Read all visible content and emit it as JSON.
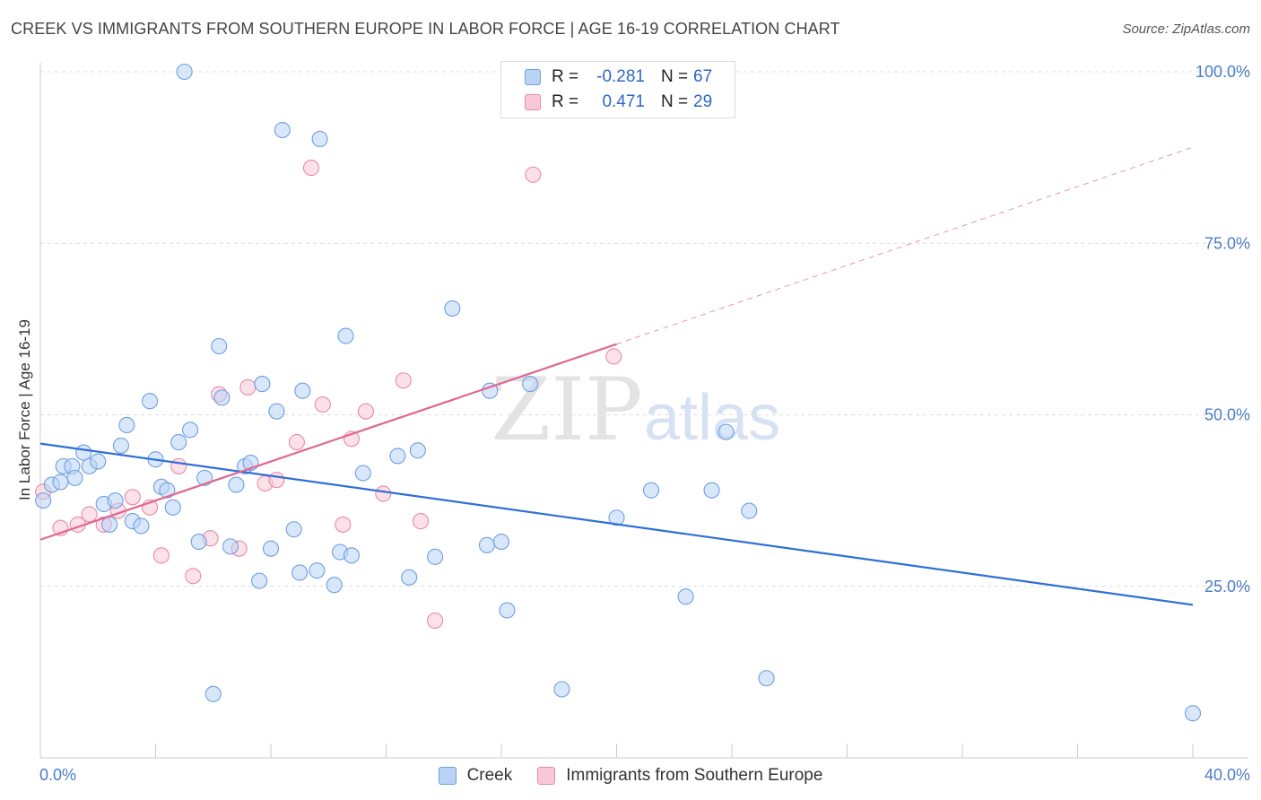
{
  "title": "CREEK VS IMMIGRANTS FROM SOUTHERN EUROPE IN LABOR FORCE | AGE 16-19 CORRELATION CHART",
  "source": "Source: ZipAtlas.com",
  "watermark": {
    "zip": "ZIP",
    "atlas": "atlas"
  },
  "legend_top": {
    "rows": [
      {
        "r_label": "R =",
        "r_value": "-0.281",
        "n_label": "N =",
        "n_value": "67"
      },
      {
        "r_label": "R =",
        "r_value": "0.471",
        "n_label": "N =",
        "n_value": "29"
      }
    ]
  },
  "legend_bottom": {
    "items": [
      {
        "label": "Creek"
      },
      {
        "label": "Immigrants from Southern Europe"
      }
    ]
  },
  "colors": {
    "creek_fill": "#b9d3f5",
    "creek_stroke": "#6d9fe0",
    "creek_line": "#2f6fd6",
    "imm_fill": "#f9c8d6",
    "imm_stroke": "#e88aa6",
    "imm_line": "#e0678f",
    "tick_text": "#4a7cc7",
    "grid": "#dddddd"
  },
  "chart_data": {
    "type": "scatter",
    "title": "CREEK VS IMMIGRANTS FROM SOUTHERN EUROPE IN LABOR FORCE | AGE 16-19 CORRELATION CHART",
    "xlabel": "",
    "ylabel": "In Labor Force | Age 16-19",
    "xlim": [
      0,
      40
    ],
    "ylim": [
      0,
      102
    ],
    "x_tick_labels": [
      "0.0%",
      "40.0%"
    ],
    "y_ticks": [
      25,
      50,
      75,
      100
    ],
    "y_tick_labels": [
      "25.0%",
      "50.0%",
      "75.0%",
      "100.0%"
    ],
    "grid": true,
    "legend_position": "top-center",
    "series": [
      {
        "name": "Creek",
        "r": -0.281,
        "n": 67,
        "trend": {
          "x0": 0,
          "y0": 45.8,
          "x1": 40,
          "y1": 22.3
        },
        "points": [
          [
            0.1,
            37.5
          ],
          [
            0.4,
            39.8
          ],
          [
            0.7,
            40.2
          ],
          [
            0.8,
            42.5
          ],
          [
            1.1,
            42.5
          ],
          [
            1.2,
            40.8
          ],
          [
            1.5,
            44.5
          ],
          [
            1.7,
            42.5
          ],
          [
            2.0,
            43.2
          ],
          [
            2.2,
            37.0
          ],
          [
            2.4,
            34.0
          ],
          [
            2.6,
            37.5
          ],
          [
            2.8,
            45.5
          ],
          [
            3.0,
            48.5
          ],
          [
            3.2,
            34.5
          ],
          [
            3.5,
            33.8
          ],
          [
            3.8,
            52.0
          ],
          [
            4.0,
            43.5
          ],
          [
            4.2,
            39.5
          ],
          [
            4.4,
            39.0
          ],
          [
            4.6,
            36.5
          ],
          [
            4.8,
            46.0
          ],
          [
            5.0,
            100.0
          ],
          [
            5.2,
            47.8
          ],
          [
            5.5,
            31.5
          ],
          [
            5.7,
            40.8
          ],
          [
            6.0,
            9.3
          ],
          [
            6.2,
            60.0
          ],
          [
            6.3,
            52.5
          ],
          [
            6.6,
            30.8
          ],
          [
            6.8,
            39.8
          ],
          [
            7.1,
            42.5
          ],
          [
            7.3,
            43.0
          ],
          [
            7.6,
            25.8
          ],
          [
            7.7,
            54.5
          ],
          [
            8.0,
            30.5
          ],
          [
            8.2,
            50.5
          ],
          [
            8.4,
            91.5
          ],
          [
            8.8,
            33.3
          ],
          [
            9.0,
            27.0
          ],
          [
            9.1,
            53.5
          ],
          [
            9.6,
            27.3
          ],
          [
            9.7,
            90.2
          ],
          [
            10.2,
            25.2
          ],
          [
            10.4,
            30.0
          ],
          [
            10.6,
            61.5
          ],
          [
            10.8,
            29.5
          ],
          [
            11.2,
            41.5
          ],
          [
            12.4,
            44.0
          ],
          [
            12.8,
            26.3
          ],
          [
            13.1,
            44.8
          ],
          [
            13.7,
            29.3
          ],
          [
            14.3,
            65.5
          ],
          [
            15.5,
            31.0
          ],
          [
            15.6,
            53.5
          ],
          [
            16.0,
            31.5
          ],
          [
            16.2,
            21.5
          ],
          [
            17.0,
            54.5
          ],
          [
            18.1,
            10.0
          ],
          [
            20.0,
            35.0
          ],
          [
            21.2,
            39.0
          ],
          [
            22.4,
            23.5
          ],
          [
            23.3,
            39.0
          ],
          [
            23.8,
            47.5
          ],
          [
            24.6,
            36.0
          ],
          [
            25.2,
            11.6
          ],
          [
            40.0,
            6.5
          ]
        ]
      },
      {
        "name": "Immigrants from Southern Europe",
        "r": 0.471,
        "n": 29,
        "trend": {
          "x0": 0,
          "y0": 31.8,
          "x1": 20.0,
          "y1": 60.3,
          "dash_x1": 40,
          "dash_y1": 89.0
        },
        "points": [
          [
            0.1,
            38.8
          ],
          [
            0.7,
            33.5
          ],
          [
            1.3,
            34.0
          ],
          [
            1.7,
            35.5
          ],
          [
            2.2,
            34.0
          ],
          [
            2.7,
            36.0
          ],
          [
            3.2,
            38.0
          ],
          [
            3.8,
            36.5
          ],
          [
            4.2,
            29.5
          ],
          [
            4.8,
            42.5
          ],
          [
            5.3,
            26.5
          ],
          [
            5.9,
            32.0
          ],
          [
            6.2,
            53.0
          ],
          [
            6.9,
            30.5
          ],
          [
            7.2,
            54.0
          ],
          [
            7.8,
            40.0
          ],
          [
            8.2,
            40.5
          ],
          [
            8.9,
            46.0
          ],
          [
            9.4,
            86.0
          ],
          [
            9.8,
            51.5
          ],
          [
            10.5,
            34.0
          ],
          [
            10.8,
            46.5
          ],
          [
            11.3,
            50.5
          ],
          [
            11.9,
            38.5
          ],
          [
            12.6,
            55.0
          ],
          [
            13.2,
            34.5
          ],
          [
            13.7,
            20.0
          ],
          [
            17.1,
            85.0
          ],
          [
            19.9,
            58.5
          ]
        ]
      }
    ]
  }
}
